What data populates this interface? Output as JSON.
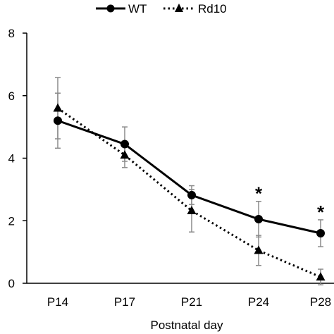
{
  "chart_data": {
    "type": "line",
    "title": "",
    "xlabel": "Postnatal day",
    "ylabel": "",
    "categories": [
      "P14",
      "P17",
      "P21",
      "P24",
      "P28"
    ],
    "ylim": [
      0,
      8
    ],
    "yticks": [
      "0",
      "2",
      "4",
      "6",
      "8"
    ],
    "grid": false,
    "legend_position": "top",
    "series": [
      {
        "name": "WT",
        "line_style": "solid",
        "marker": "circle",
        "color": "#000000",
        "values": [
          5.2,
          4.45,
          2.82,
          2.05,
          1.6
        ],
        "error": [
          0.88,
          0.55,
          0.3,
          0.57,
          0.43
        ]
      },
      {
        "name": "Rd10",
        "line_style": "dotted",
        "marker": "triangle",
        "color": "#000000",
        "values": [
          5.6,
          4.1,
          2.32,
          1.05,
          0.2
        ],
        "error": [
          0.98,
          0.4,
          0.68,
          0.48,
          0.25
        ]
      }
    ],
    "annotations": [
      {
        "text": "*",
        "category": "P24"
      },
      {
        "text": "*",
        "category": "P28"
      }
    ]
  }
}
